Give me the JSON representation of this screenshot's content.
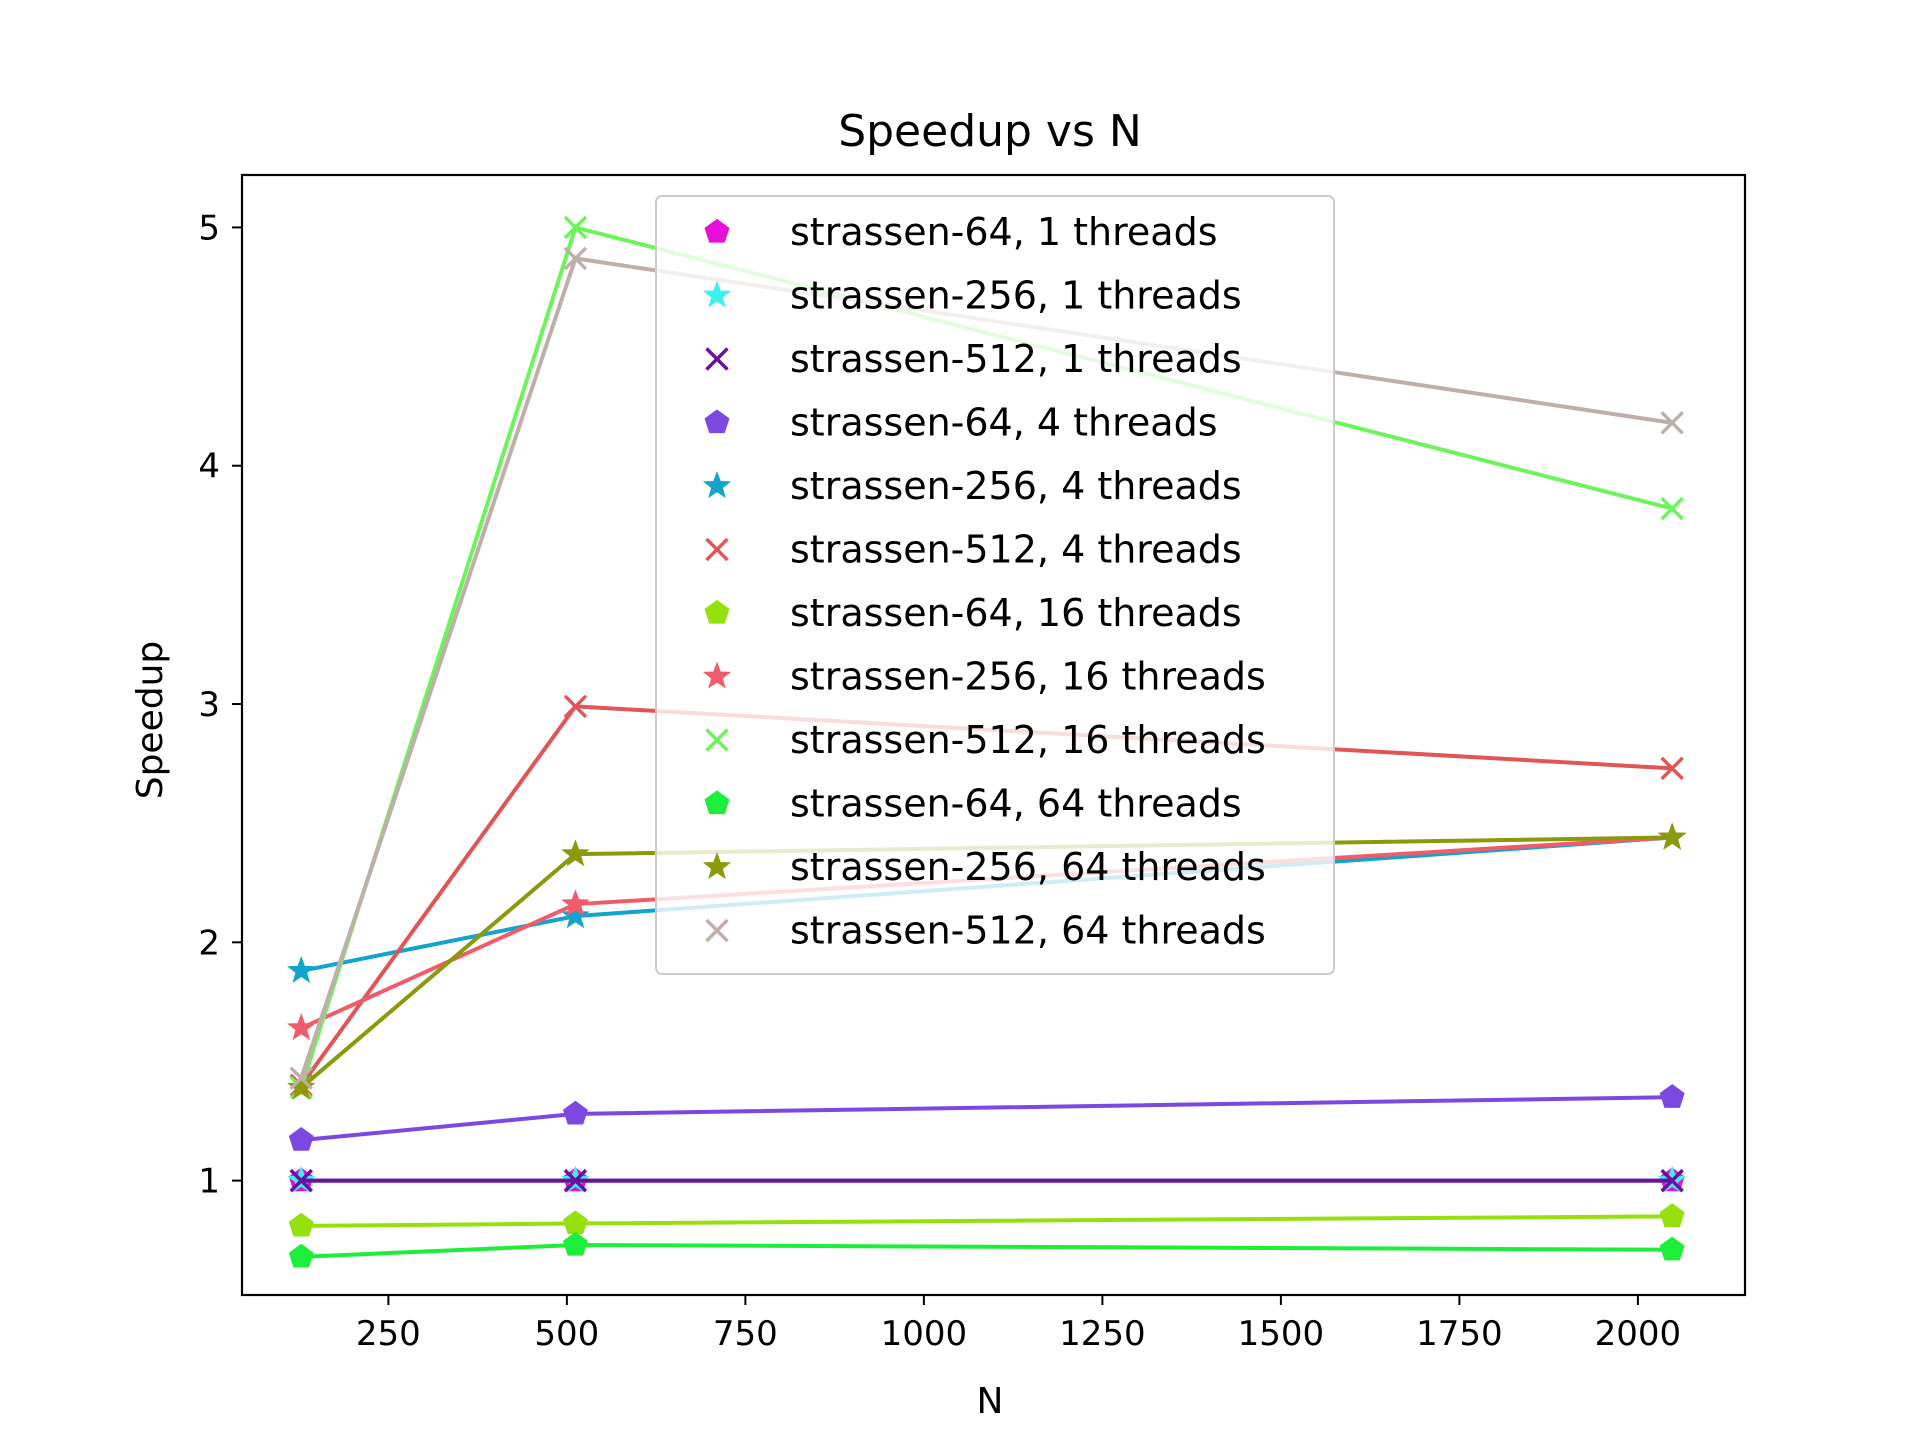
{
  "chart_data": {
    "type": "line",
    "title": "Speedup vs N",
    "xlabel": "N",
    "ylabel": "Speedup",
    "x": [
      128,
      512,
      2048
    ],
    "xlim": [
      45,
      2150
    ],
    "ylim": [
      0.52,
      5.22
    ],
    "xticks": [
      250,
      500,
      750,
      1000,
      1250,
      1500,
      1750,
      2000
    ],
    "yticks": [
      1,
      2,
      3,
      4,
      5
    ],
    "grid": false,
    "legend_position": "top-center",
    "series": [
      {
        "name": "strassen-64, 1 threads",
        "color": "#e60ed8",
        "marker": "pentagon",
        "values": [
          1.0,
          1.0,
          1.0
        ]
      },
      {
        "name": "strassen-256, 1 threads",
        "color": "#3ef0f0",
        "marker": "star",
        "values": [
          1.0,
          1.0,
          1.0
        ]
      },
      {
        "name": "strassen-512, 1 threads",
        "color": "#6a0fa0",
        "marker": "x",
        "values": [
          1.0,
          1.0,
          1.0
        ]
      },
      {
        "name": "strassen-64, 4 threads",
        "color": "#7d48e0",
        "marker": "pentagon",
        "values": [
          1.17,
          1.28,
          1.35
        ]
      },
      {
        "name": "strassen-256, 4 threads",
        "color": "#12a4cc",
        "marker": "star",
        "values": [
          1.88,
          2.11,
          2.44
        ]
      },
      {
        "name": "strassen-512, 4 threads",
        "color": "#e05656",
        "marker": "x",
        "values": [
          1.4,
          2.99,
          2.73
        ]
      },
      {
        "name": "strassen-64, 16 threads",
        "color": "#96e00e",
        "marker": "pentagon",
        "values": [
          0.81,
          0.82,
          0.85
        ]
      },
      {
        "name": "strassen-256, 16 threads",
        "color": "#f25c6a",
        "marker": "star",
        "values": [
          1.64,
          2.16,
          2.44
        ]
      },
      {
        "name": "strassen-512, 16 threads",
        "color": "#6cf55a",
        "marker": "x",
        "values": [
          1.39,
          5.0,
          3.82
        ]
      },
      {
        "name": "strassen-64, 64 threads",
        "color": "#1cee3a",
        "marker": "pentagon",
        "values": [
          0.68,
          0.73,
          0.71
        ]
      },
      {
        "name": "strassen-256, 64 threads",
        "color": "#8a9a0a",
        "marker": "star",
        "values": [
          1.39,
          2.37,
          2.44
        ]
      },
      {
        "name": "strassen-512, 64 threads",
        "color": "#c0aeaa",
        "marker": "x",
        "values": [
          1.43,
          4.87,
          4.18
        ]
      }
    ]
  }
}
